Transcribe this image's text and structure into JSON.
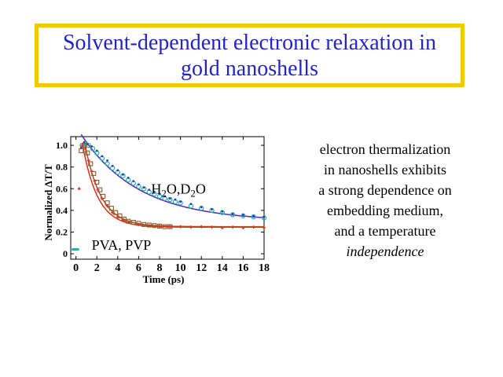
{
  "slide": {
    "title_line1": "Solvent-dependent electronic relaxation in",
    "title_line2": "gold nanoshells",
    "title_color": "#2323c8",
    "title_border_color": "#f7c800"
  },
  "description": {
    "line1": "electron thermalization",
    "line2": "in nanoshells exhibits",
    "line3": "a strong dependence on",
    "line4": "embedding medium,",
    "line5": "and a temperature",
    "line6": "independence"
  },
  "chart_data": {
    "type": "scatter",
    "xlabel": "Time (ps)",
    "ylabel": "Normalized ΔT/T",
    "xlim": [
      -0.5,
      18
    ],
    "ylim": [
      -0.05,
      1.08
    ],
    "xticks": [
      0,
      2,
      4,
      6,
      8,
      10,
      12,
      14,
      16,
      18
    ],
    "xtick_labels": [
      "0",
      "2",
      "4",
      "6",
      "8",
      "10",
      "12",
      "14",
      "16",
      "18"
    ],
    "yticks": [
      0,
      0.2,
      0.4,
      0.6,
      0.8,
      1.0
    ],
    "ytick_labels": [
      "0",
      "0.2",
      "0.4",
      "0.6",
      "0.8",
      "1.0"
    ],
    "grid": false,
    "annotations": [
      {
        "id": "water",
        "text_parts": [
          "H",
          "2",
          "O,D",
          "2",
          "O"
        ],
        "x": 7.2,
        "y": 0.6
      },
      {
        "id": "polymer",
        "text": "PVA, PVP",
        "x": 1.5,
        "y": 0.08
      }
    ],
    "series": [
      {
        "id": "h2o",
        "marker": "circle",
        "color": "#1fb59a",
        "x": [
          0.6,
          0.9,
          1.2,
          1.6,
          2.0,
          2.5,
          3.0,
          3.5,
          4.0,
          4.5,
          5.0,
          5.5,
          6.0,
          6.5,
          7.0,
          7.5,
          8.0,
          8.5,
          9.0,
          9.5,
          10.0,
          11.0,
          12.0,
          13.0,
          14.0,
          15.0,
          16.0,
          17.0,
          18.0
        ],
        "y": [
          1.0,
          1.02,
          1.0,
          0.97,
          0.93,
          0.88,
          0.83,
          0.79,
          0.75,
          0.72,
          0.68,
          0.65,
          0.62,
          0.6,
          0.57,
          0.55,
          0.53,
          0.51,
          0.5,
          0.48,
          0.47,
          0.44,
          0.42,
          0.4,
          0.38,
          0.36,
          0.35,
          0.34,
          0.33
        ]
      },
      {
        "id": "d2o",
        "marker": "dot",
        "color": "#1f3fd0",
        "x": [
          0.5,
          0.8,
          1.1,
          1.5,
          2.0,
          2.5,
          3.0,
          3.5,
          4.0,
          4.5,
          5.0,
          5.5,
          6.0,
          6.5,
          7.0,
          7.5,
          8.0,
          8.5,
          9.0,
          9.5,
          10.0,
          11.0,
          12.0,
          13.0,
          14.0,
          15.0,
          16.0,
          17.0,
          18.0
        ],
        "y": [
          0.98,
          1.03,
          1.01,
          0.99,
          0.95,
          0.9,
          0.86,
          0.81,
          0.77,
          0.73,
          0.7,
          0.67,
          0.64,
          0.61,
          0.59,
          0.57,
          0.55,
          0.53,
          0.51,
          0.5,
          0.48,
          0.46,
          0.43,
          0.41,
          0.39,
          0.37,
          0.36,
          0.35,
          0.34
        ]
      },
      {
        "id": "pva",
        "marker": "square",
        "color": "#8a5a2a",
        "x": [
          0.5,
          0.8,
          1.1,
          1.4,
          1.7,
          2.0,
          2.3,
          2.6,
          3.0,
          3.4,
          3.8,
          4.2,
          4.6,
          5.0,
          5.5,
          6.0,
          6.5,
          7.0,
          7.5,
          8.0,
          8.5,
          9.0
        ],
        "y": [
          0.95,
          1.0,
          0.93,
          0.83,
          0.74,
          0.66,
          0.59,
          0.53,
          0.47,
          0.42,
          0.38,
          0.35,
          0.32,
          0.3,
          0.29,
          0.28,
          0.27,
          0.265,
          0.26,
          0.255,
          0.25,
          0.25
        ]
      },
      {
        "id": "pvp",
        "marker": "cross",
        "color": "#e03020",
        "x": [
          0.3,
          0.6,
          0.9,
          1.2,
          1.5,
          1.8,
          2.1,
          2.5,
          3.0,
          3.5,
          4.0,
          4.5,
          5.0,
          6.0,
          7.0,
          8.0,
          9.0,
          10.0,
          11.0,
          12.0,
          13.0,
          14.0,
          15.0,
          16.0,
          17.0,
          18.0
        ],
        "y": [
          0.6,
          1.0,
          0.97,
          0.86,
          0.76,
          0.67,
          0.59,
          0.51,
          0.44,
          0.38,
          0.34,
          0.31,
          0.29,
          0.27,
          0.26,
          0.255,
          0.25,
          0.25,
          0.245,
          0.25,
          0.245,
          0.24,
          0.245,
          0.24,
          0.245,
          0.24
        ]
      }
    ],
    "fits": [
      {
        "id": "fit-slow",
        "color": "#5a20c8",
        "rise": 0.5,
        "amplitude": 0.8,
        "tau": 5.5,
        "offset": 0.3
      },
      {
        "id": "fit-fast",
        "color": "#8a5a2a",
        "rise": 0.8,
        "amplitude": 0.79,
        "tau": 1.55,
        "offset": 0.25
      },
      {
        "id": "fit-pvp",
        "color": "#e03020",
        "rise": 0.6,
        "amplitude": 0.78,
        "tau": 1.45,
        "offset": 0.245
      }
    ],
    "baseline": {
      "x": [
        -0.4,
        0.3
      ],
      "y": 0.04,
      "color": "#1fb59a"
    }
  }
}
